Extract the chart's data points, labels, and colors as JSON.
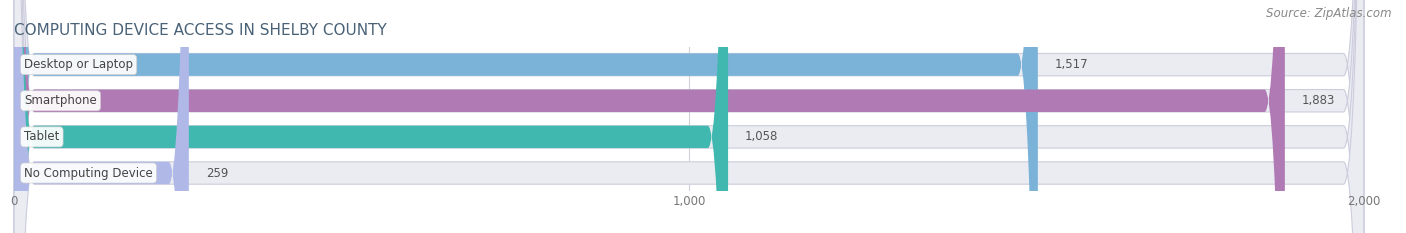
{
  "title": "COMPUTING DEVICE ACCESS IN SHELBY COUNTY",
  "source": "Source: ZipAtlas.com",
  "categories": [
    "Desktop or Laptop",
    "Smartphone",
    "Tablet",
    "No Computing Device"
  ],
  "values": [
    1517,
    1883,
    1058,
    259
  ],
  "bar_colors": [
    "#7ab2d8",
    "#b07ab5",
    "#40b8b0",
    "#b0b8e8"
  ],
  "bar_bg_color": "#eaecf2",
  "xlim": [
    0,
    2000
  ],
  "xticks": [
    0,
    1000,
    2000
  ],
  "xtick_labels": [
    "0",
    "1,000",
    "2,000"
  ],
  "value_labels": [
    "1,517",
    "1,883",
    "1,058",
    "259"
  ],
  "title_fontsize": 11,
  "label_fontsize": 8.5,
  "value_fontsize": 8.5,
  "source_fontsize": 8.5,
  "bg_color": "#ffffff",
  "bar_height": 0.62,
  "title_color": "#4a6278",
  "value_color": "#555555",
  "label_color": "#444444",
  "source_color": "#888888",
  "grid_color": "#d0d0d8",
  "bar_border_color": "#ccccdd"
}
